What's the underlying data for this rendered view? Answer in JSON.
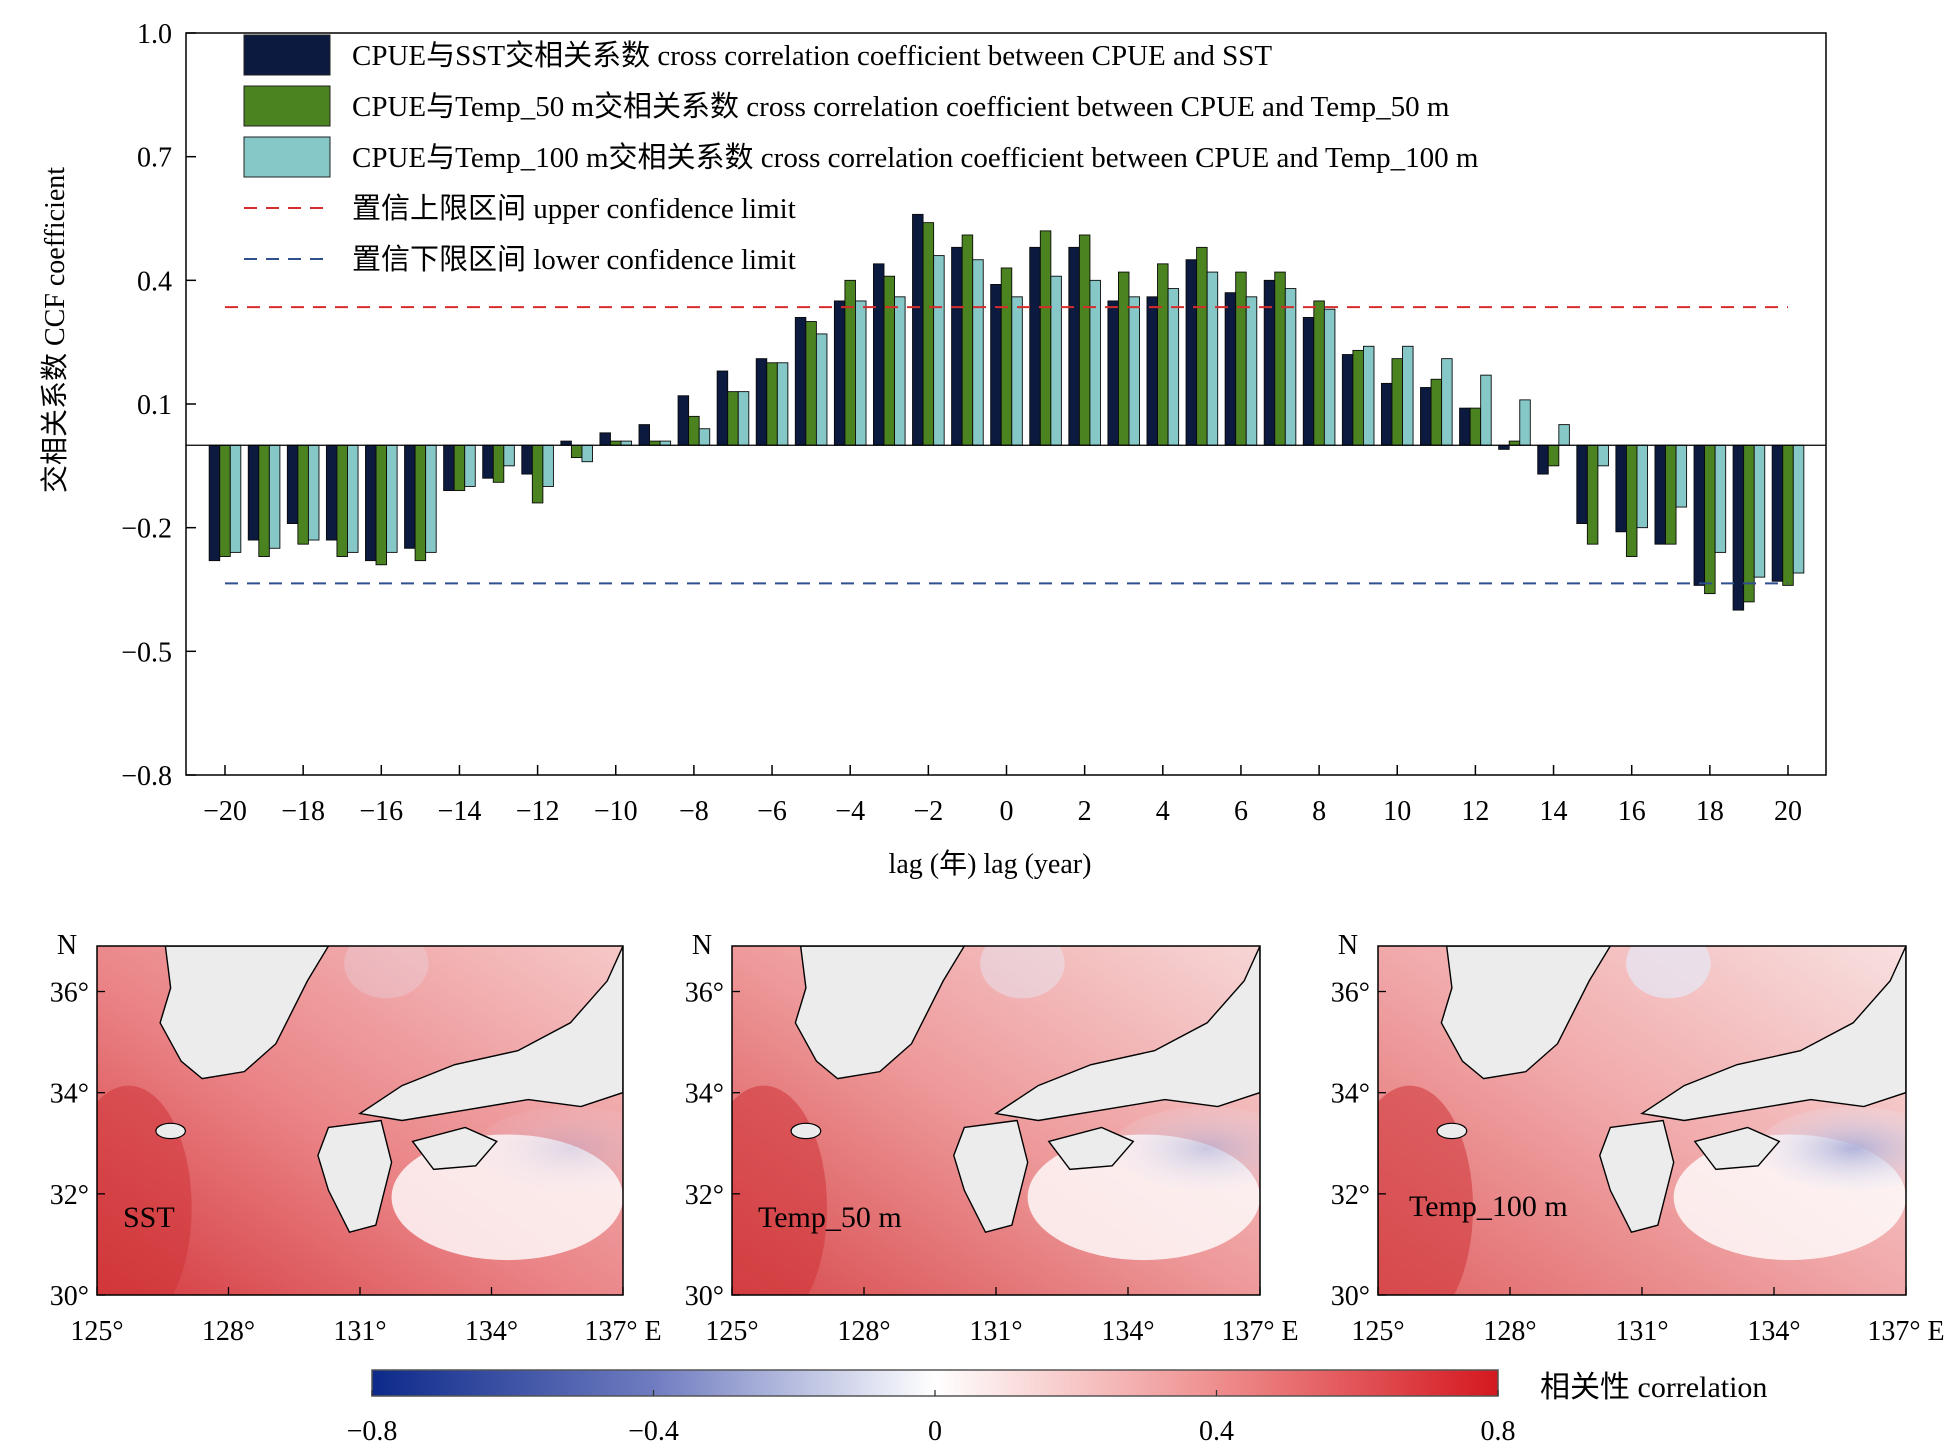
{
  "chart_data": [
    {
      "type": "bar",
      "xlabel": "lag (年) lag (year)",
      "ylabel": "交相关系数 CCF coefficient",
      "ylim": [
        -0.8,
        1.0
      ],
      "yticks": [
        "1.0",
        "0.7",
        "0.4",
        "0.1",
        "−0.2",
        "−0.5",
        "−0.8"
      ],
      "xticks": [
        "−20",
        "−18",
        "−16",
        "−14",
        "−12",
        "−10",
        "−8",
        "−6",
        "−4",
        "−2",
        "0",
        "2",
        "4",
        "6",
        "8",
        "10",
        "12",
        "14",
        "16",
        "18",
        "20"
      ],
      "lags": [
        -20,
        -19,
        -18,
        -17,
        -16,
        -15,
        -14,
        -13,
        -12,
        -11,
        -10,
        -9,
        -8,
        -7,
        -6,
        -5,
        -4,
        -3,
        -2,
        -1,
        0,
        1,
        2,
        3,
        4,
        5,
        6,
        7,
        8,
        9,
        10,
        11,
        12,
        13,
        14,
        15,
        16,
        17,
        18,
        19,
        20
      ],
      "legend_position": "top-left",
      "series": [
        {
          "name": "CPUE与SST交相关系数 cross correlation coefficient between CPUE and SST",
          "color": "#0b1a3e",
          "values": [
            -0.28,
            -0.23,
            -0.19,
            -0.23,
            -0.28,
            -0.25,
            -0.11,
            -0.08,
            -0.07,
            0.01,
            0.03,
            0.05,
            0.12,
            0.18,
            0.21,
            0.31,
            0.35,
            0.44,
            0.56,
            0.48,
            0.39,
            0.48,
            0.48,
            0.35,
            0.36,
            0.45,
            0.37,
            0.4,
            0.31,
            0.22,
            0.15,
            0.14,
            0.09,
            -0.01,
            -0.07,
            -0.19,
            -0.21,
            -0.24,
            -0.34,
            -0.4,
            -0.33
          ]
        },
        {
          "name": "CPUE与Temp_50 m交相关系数 cross correlation coefficient between CPUE and Temp_50 m",
          "color": "#4a8320",
          "values": [
            -0.27,
            -0.27,
            -0.24,
            -0.27,
            -0.29,
            -0.28,
            -0.11,
            -0.09,
            -0.14,
            -0.03,
            0.01,
            0.01,
            0.07,
            0.13,
            0.2,
            0.3,
            0.4,
            0.41,
            0.54,
            0.51,
            0.43,
            0.52,
            0.51,
            0.42,
            0.44,
            0.48,
            0.42,
            0.42,
            0.35,
            0.23,
            0.21,
            0.16,
            0.09,
            0.01,
            -0.05,
            -0.24,
            -0.27,
            -0.24,
            -0.36,
            -0.38,
            -0.34
          ]
        },
        {
          "name": "CPUE与Temp_100 m交相关系数 cross correlation coefficient between CPUE and Temp_100 m",
          "color": "#86c8c8",
          "values": [
            -0.26,
            -0.25,
            -0.23,
            -0.26,
            -0.26,
            -0.26,
            -0.1,
            -0.05,
            -0.1,
            -0.04,
            0.01,
            0.01,
            0.04,
            0.13,
            0.2,
            0.27,
            0.35,
            0.36,
            0.46,
            0.45,
            0.36,
            0.41,
            0.4,
            0.36,
            0.38,
            0.42,
            0.36,
            0.38,
            0.33,
            0.24,
            0.24,
            0.21,
            0.17,
            0.11,
            0.05,
            -0.05,
            -0.2,
            -0.15,
            -0.26,
            -0.32,
            -0.31
          ]
        }
      ],
      "reference_lines": [
        {
          "name": "置信上限区间 upper confidence limit",
          "value": 0.335,
          "color": "#d62c2c",
          "style": "dashed"
        },
        {
          "name": "置信下限区间 lower confidence limit",
          "value": -0.335,
          "color": "#2f4f8f",
          "style": "dashed"
        }
      ]
    },
    {
      "type": "heatmap",
      "panels": [
        "SST",
        "Temp_50 m",
        "Temp_100 m"
      ],
      "lat_ticks": [
        "30°",
        "32°",
        "34°",
        "36°"
      ],
      "lat_label": "N",
      "lon_ticks": [
        "125°",
        "128°",
        "131°",
        "134°",
        "137° E"
      ],
      "colorbar": {
        "label": "相关性  correlation",
        "range": [
          -0.8,
          0.8
        ],
        "ticks": [
          "−0.8",
          "−0.4",
          "0",
          "0.4",
          "0.8"
        ],
        "low_color": "#0d2a8a",
        "mid_color": "#ffffff",
        "high_color": "#d4181f"
      }
    }
  ]
}
